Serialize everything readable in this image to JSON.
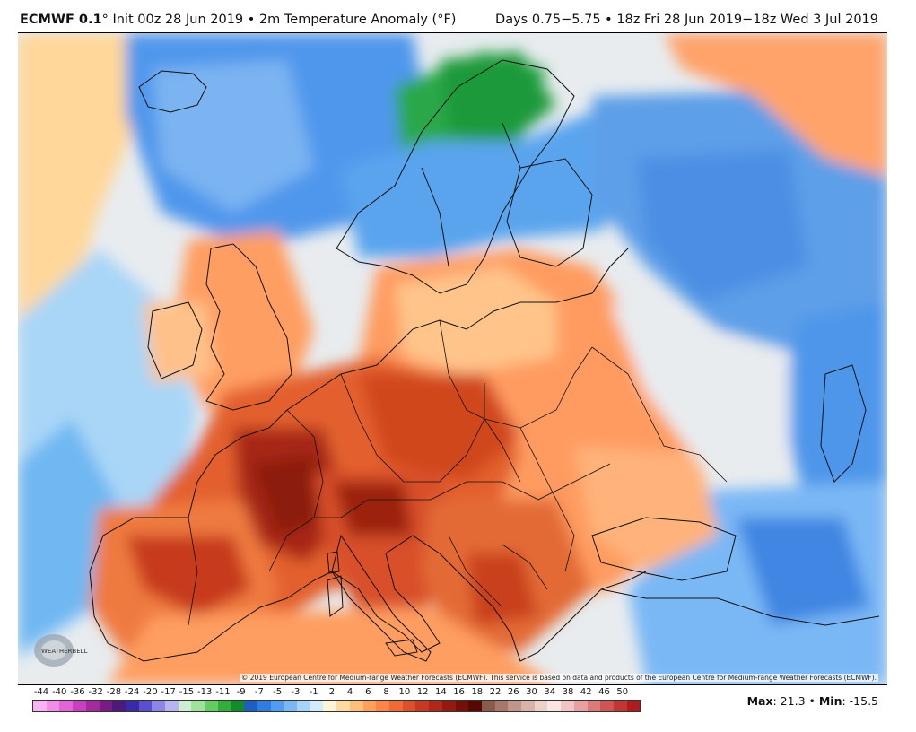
{
  "header": {
    "model": "ECMWF 0.1",
    "degree": "°",
    "run_info": " Init 00z 28 Jun 2019 • 2m Temperature Anomaly (°F)",
    "valid_info": "Days 0.75−5.75 • 18z Fri 28 Jun 2019−18z Wed 3 Jul 2019"
  },
  "copyright": "© 2019 European Centre for Medium-range Weather Forecasts (ECMWF). This service is based on data and products of the European Centre for Medium-range Weather Forecasts (ECMWF).",
  "logo_text": "WEATHERBELL",
  "colorbar": {
    "tick_labels": [
      "-44",
      "-40",
      "-36",
      "-32",
      "-28",
      "-24",
      "-20",
      "-17",
      "-15",
      "-13",
      "-11",
      "-9",
      "-7",
      "-5",
      "-3",
      "-1",
      "2",
      "4",
      "6",
      "8",
      "10",
      "12",
      "14",
      "16",
      "18",
      "22",
      "26",
      "30",
      "34",
      "38",
      "42",
      "46",
      "50"
    ],
    "colors": [
      "#f7b3f2",
      "#f08de8",
      "#e364d8",
      "#c93fbf",
      "#a52aa0",
      "#7b1a84",
      "#4b1a7c",
      "#3b2aa8",
      "#5a4fd0",
      "#8c86e6",
      "#b9b4f1",
      "#cfeed0",
      "#9fe29c",
      "#63cc63",
      "#2fae38",
      "#158a2a",
      "#1c5ec2",
      "#2f7de0",
      "#4f9cf0",
      "#7ab8f5",
      "#a6d3f8",
      "#d2ecfb",
      "#fff4d6",
      "#ffd9a0",
      "#ffbe7a",
      "#ffa15c",
      "#ff8447",
      "#f06a38",
      "#de502c",
      "#c73a22",
      "#ad2818",
      "#921a10",
      "#741008",
      "#560804",
      "#8a5a4a",
      "#a8776a",
      "#c2958a",
      "#d9b3aa",
      "#ecd0ca",
      "#f8e6e2",
      "#f2c4c4",
      "#e8a0a0",
      "#dc7a7a",
      "#cf5555",
      "#c13535",
      "#b01c1c"
    ]
  },
  "stats": {
    "max_label": "Max",
    "max_value": ": 21.3 • ",
    "min_label": "Min",
    "min_value": ": -15.5"
  },
  "colors": {
    "ocean_neutral": "#e9ecef",
    "cool": "#5aa0ea",
    "warm": "#ff8f5a",
    "hot": "#c0361e",
    "very_cold": "#1e9f3a"
  }
}
